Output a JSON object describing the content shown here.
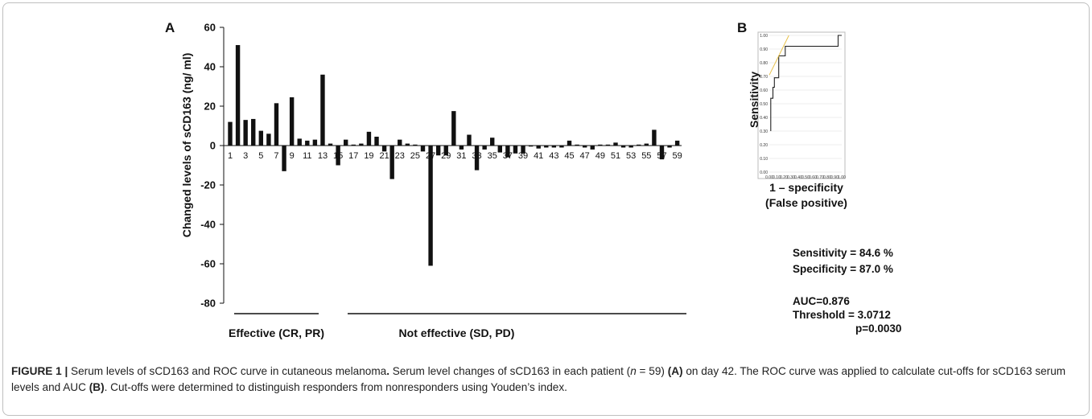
{
  "chart_data": [
    {
      "panel": "A",
      "type": "bar",
      "ylabel": "Changed levels of sCD163 (ng/ ml)",
      "ylim": [
        -80,
        60
      ],
      "yticks": [
        60,
        40,
        20,
        0,
        -20,
        -40,
        -60,
        -80
      ],
      "xticks": [
        "1",
        "3",
        "5",
        "7",
        "9",
        "11",
        "13",
        "15",
        "17",
        "19",
        "21",
        "23",
        "25",
        "27",
        "29",
        "31",
        "33",
        "35",
        "37",
        "39",
        "41",
        "43",
        "45",
        "47",
        "49",
        "51",
        "53",
        "55",
        "57",
        "59"
      ],
      "groups": [
        {
          "label": "Effective (CR, PR)",
          "from": 1,
          "to": 13
        },
        {
          "label": "Not effective (SD, PD)",
          "from": 15,
          "to": 59
        }
      ],
      "patients": [
        1,
        2,
        3,
        4,
        5,
        6,
        7,
        8,
        9,
        10,
        11,
        12,
        13,
        14,
        15,
        16,
        17,
        18,
        19,
        20,
        21,
        22,
        23,
        24,
        25,
        26,
        27,
        28,
        29,
        30,
        31,
        32,
        33,
        34,
        35,
        36,
        37,
        38,
        39,
        40,
        41,
        42,
        43,
        44,
        45,
        46,
        47,
        48,
        49,
        50,
        51,
        52,
        53,
        54,
        55,
        56,
        57,
        58,
        59
      ],
      "values": [
        12,
        51,
        13,
        13.5,
        7.5,
        6,
        21.5,
        -13,
        24.5,
        3.5,
        2.5,
        3,
        36,
        1,
        -10,
        3,
        0.5,
        1,
        7,
        4.5,
        -3,
        -17,
        3,
        1,
        0.5,
        -3,
        -61,
        -5,
        -5,
        17.5,
        -2,
        5.5,
        -12.5,
        -2,
        4,
        -3.5,
        -6,
        -4,
        -4,
        -0.5,
        -1.5,
        -1,
        -1,
        -1,
        2.5,
        0.5,
        -1,
        -2,
        0.5,
        0.5,
        1.5,
        -1,
        -1,
        0.5,
        1,
        8,
        -7,
        -1,
        2.5
      ],
      "grid": false
    },
    {
      "panel": "B",
      "type": "line",
      "ylabel": "Sensitivity",
      "xlabel_line1": "1 – specificity",
      "xlabel_line2": "(False positive)",
      "xlim": [
        0,
        1
      ],
      "ylim": [
        0,
        1
      ],
      "xticks": [
        "0.00",
        "0.10",
        "0.20",
        "0.30",
        "0.40",
        "0.50",
        "0.60",
        "0.70",
        "0.80",
        "0.90",
        "1.00"
      ],
      "yticks": [
        "1.00",
        "0.90",
        "0.80",
        "0.70",
        "0.60",
        "0.50",
        "0.40",
        "0.30",
        "0.20",
        "0.10",
        "0.00"
      ],
      "series": [
        {
          "role": "roc",
          "color": "#222222",
          "points": [
            [
              0.02,
              0.3
            ],
            [
              0.02,
              0.54
            ],
            [
              0.05,
              0.54
            ],
            [
              0.05,
              0.62
            ],
            [
              0.07,
              0.62
            ],
            [
              0.07,
              0.69
            ],
            [
              0.13,
              0.69
            ],
            [
              0.13,
              0.85
            ],
            [
              0.22,
              0.85
            ],
            [
              0.22,
              0.92
            ],
            [
              0.95,
              0.92
            ],
            [
              0.95,
              1.0
            ],
            [
              1.0,
              1.0
            ]
          ]
        },
        {
          "role": "youden-tangent",
          "color": "#e8c14a",
          "points": [
            [
              0.0,
              0.71
            ],
            [
              0.27,
              1.0
            ]
          ]
        }
      ],
      "grid": true
    }
  ],
  "labels": {
    "panel_a": "A",
    "panel_b": "B",
    "sensitivity": "Sensitivity = 84.6 %",
    "specificity": "Specificity = 87.0 %",
    "auc": "AUC=0.876",
    "threshold": "Threshold = 3.0712",
    "pvalue": "p=0.0030"
  },
  "caption": {
    "figure_label": "FIGURE 1 |",
    "title": " Serum levels of sCD163 and ROC curve in cutaneous melanoma",
    "title_end": ".",
    "text_1": " Serum level changes of sCD163 in each patient (",
    "n_var": "n",
    "text_2": " = 59) ",
    "ref_a": "(A)",
    "text_3": " on day 42. The ROC curve was applied to calculate cut-offs for sCD163 serum levels and AUC ",
    "ref_b": "(B)",
    "text_4": ". Cut-offs were determined to distinguish responders from nonresponders using Youden’s index."
  }
}
